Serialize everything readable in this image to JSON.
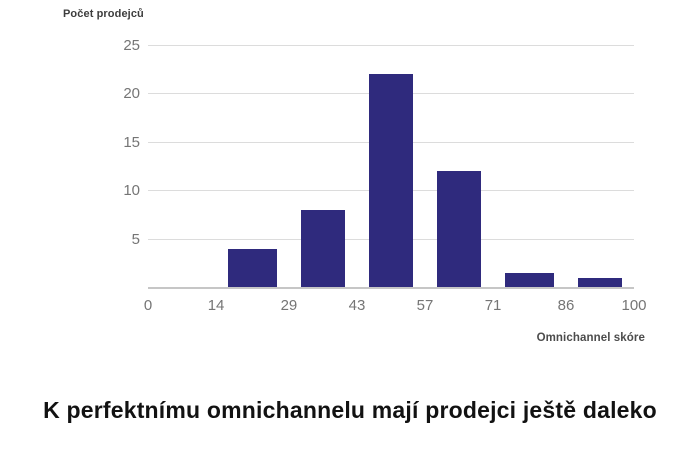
{
  "chart": {
    "title": "K perfektnímu omnichannelu mají prodejci ještě daleko",
    "y_axis_title": "Počet prodejců",
    "x_axis_title": "Omnichannel skóre",
    "colors": {
      "bar": "#2f2a7d",
      "gridline": "#dcdcdc",
      "axis_line": "#c6c6c6",
      "tick_text": "#757575",
      "title_text": "#121212"
    }
  },
  "chart_data": {
    "type": "bar",
    "subtype": "histogram",
    "title": "K perfektnímu omnichannelu mají prodejci ještě daleko",
    "xlabel": "Omnichannel skóre",
    "ylabel": "Počet prodejců",
    "bin_edges": [
      0,
      14,
      29,
      43,
      57,
      71,
      86,
      100
    ],
    "counts": [
      0,
      4,
      8,
      22,
      12,
      1.5,
      1
    ],
    "x_tick_labels": [
      "0",
      "14",
      "29",
      "43",
      "57",
      "71",
      "86",
      "100"
    ],
    "y_ticks": [
      5,
      10,
      15,
      20,
      25
    ],
    "xlim": [
      0,
      100
    ],
    "ylim": [
      0,
      25
    ],
    "grid": "horizontal",
    "legend": false,
    "bar_color": "#2f2a7d"
  }
}
